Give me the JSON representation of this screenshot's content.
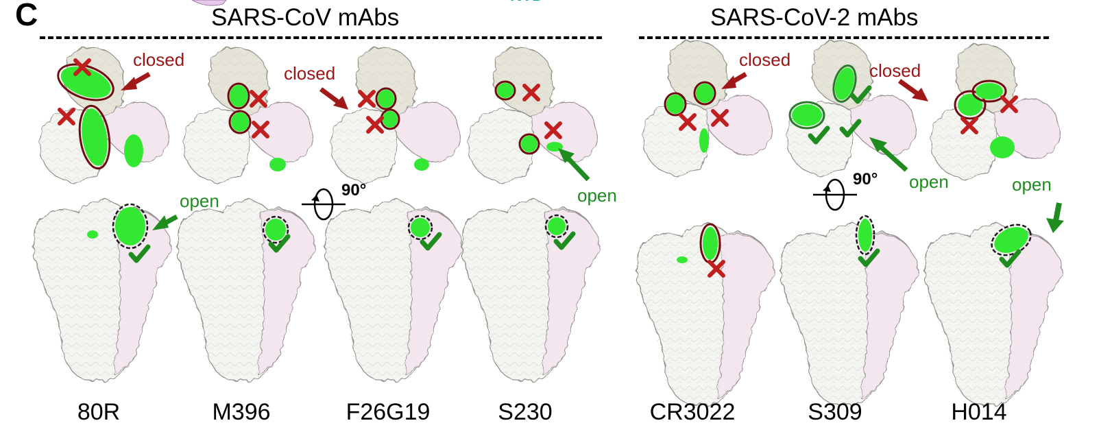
{
  "panel_letter": "C",
  "groups": [
    {
      "title": "SARS-CoV mAbs",
      "antibodies": [
        "80R",
        "M396",
        "F26G19",
        "S230"
      ]
    },
    {
      "title": "SARS-CoV-2 mAbs",
      "antibodies": [
        "CR3022",
        "S309",
        "H014"
      ]
    }
  ],
  "annotations": {
    "closed": "closed",
    "open": "open",
    "rotation": "90°"
  },
  "colors": {
    "epitope_green": "#33e833",
    "closed_red": "#9b1414",
    "open_green": "#1f8c1f",
    "protomer_white": "#f4f4f0",
    "protomer_pink": "#f3e6ee",
    "protomer_beige": "#e6e4d8"
  },
  "icons": {
    "blocked": "cross-mark-icon",
    "accessible": "check-mark-icon",
    "rotation": "rotation-arrow-icon",
    "partial_top_glyph": "NTD"
  }
}
